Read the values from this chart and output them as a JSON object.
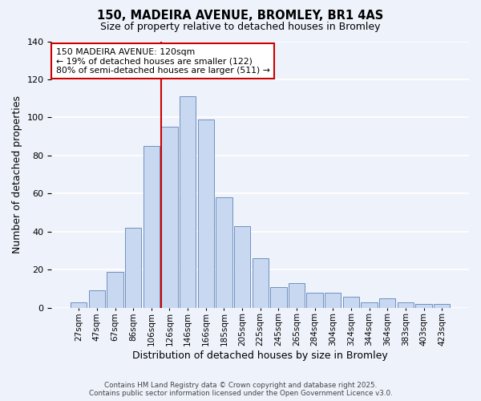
{
  "title": "150, MADEIRA AVENUE, BROMLEY, BR1 4AS",
  "subtitle": "Size of property relative to detached houses in Bromley",
  "xlabel": "Distribution of detached houses by size in Bromley",
  "ylabel": "Number of detached properties",
  "bar_labels": [
    "27sqm",
    "47sqm",
    "67sqm",
    "86sqm",
    "106sqm",
    "126sqm",
    "146sqm",
    "166sqm",
    "185sqm",
    "205sqm",
    "225sqm",
    "245sqm",
    "265sqm",
    "284sqm",
    "304sqm",
    "324sqm",
    "344sqm",
    "364sqm",
    "383sqm",
    "403sqm",
    "423sqm"
  ],
  "bar_heights": [
    3,
    9,
    19,
    42,
    85,
    95,
    111,
    99,
    58,
    43,
    26,
    11,
    13,
    8,
    8,
    6,
    3,
    5,
    3,
    2,
    2
  ],
  "bar_color": "#c8d8f0",
  "bar_edge_color": "#7090c0",
  "vline_label_index": 5,
  "vline_color": "#cc0000",
  "annotation_title": "150 MADEIRA AVENUE: 120sqm",
  "annotation_line1": "← 19% of detached houses are smaller (122)",
  "annotation_line2": "80% of semi-detached houses are larger (511) →",
  "annotation_box_color": "#ffffff",
  "annotation_box_edge": "#cc0000",
  "ylim": [
    0,
    140
  ],
  "yticks": [
    0,
    20,
    40,
    60,
    80,
    100,
    120,
    140
  ],
  "background_color": "#eef2fb",
  "footer1": "Contains HM Land Registry data © Crown copyright and database right 2025.",
  "footer2": "Contains public sector information licensed under the Open Government Licence v3.0."
}
